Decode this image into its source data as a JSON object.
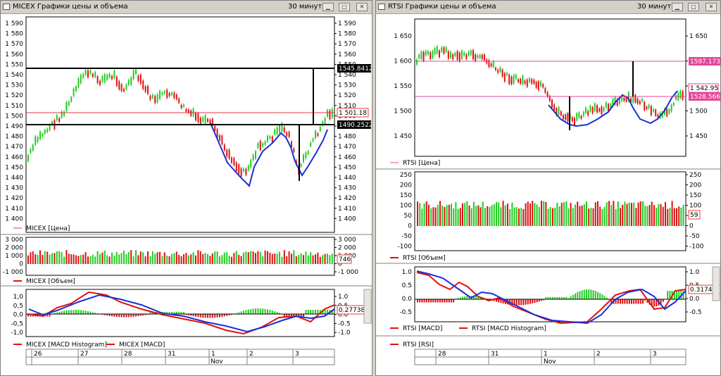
{
  "left": {
    "title": "MICEX Графики цены и объема",
    "interval": "30 минут",
    "price": {
      "ticks": [
        "1 590",
        "1 580",
        "1 570",
        "1 560",
        "1 550",
        "1 540",
        "1 530",
        "1 520",
        "1 510",
        "1 500",
        "1 490",
        "1 480",
        "1 470",
        "1 460",
        "1 450",
        "1 440",
        "1 430",
        "1 420",
        "1 410",
        "1 400"
      ],
      "marker_top": "1545.84126",
      "marker_mid": "1 501.18",
      "marker_bot": "1490.25228",
      "legend": "MICEX [Цена]"
    },
    "volume": {
      "ticks": [
        "3 000",
        "2 000",
        "1 000",
        "0",
        "-1 000"
      ],
      "marker": "746",
      "legend": "MICEX [Объем]"
    },
    "macd": {
      "ticks": [
        "1,0",
        "0,5",
        "0,0",
        "-0,5",
        "-1,0"
      ],
      "ticks_right": [
        "1.0",
        "0.5",
        "0.0",
        "-0.5",
        "-1.0"
      ],
      "marker": "0.27738",
      "legend1": "MICEX [MACD Histogram]",
      "legend2": "MICEX [MACD]"
    },
    "dates": [
      "26",
      "27",
      "28",
      "31",
      "1",
      "2",
      "3"
    ],
    "month": "Nov"
  },
  "right": {
    "title": "RTSI Графики цены и объема",
    "interval": "30 минут",
    "price": {
      "ticks": [
        "1 650",
        "1 600",
        "1 550",
        "1 500",
        "1 450"
      ],
      "marker_top": "1597.17375",
      "marker_mid": "1 542.95",
      "marker_bot": "1528.56670",
      "legend": "RTSI [Цена]"
    },
    "volume": {
      "ticks": [
        "250",
        "200",
        "150",
        "100",
        "50",
        "0",
        "-50",
        "-100"
      ],
      "marker": "59",
      "legend": "RTSI [Объем]"
    },
    "macd": {
      "ticks": [
        "1.0",
        "0.5",
        "0.0",
        "-0.5"
      ],
      "marker": "0.317479",
      "legend1": "RTSI [MACD]",
      "legend2": "RTSI [MACD Histogram]"
    },
    "rsi": {
      "legend": "RTSI [RSI]"
    },
    "dates": [
      "28",
      "31",
      "1",
      "2",
      "3"
    ],
    "month": "Nov"
  },
  "colors": {
    "up": "#22cc22",
    "down": "#dd1111",
    "wave": "#1a2fd6",
    "macd_line": "#e01010",
    "signal_line": "#1a2fd6",
    "level_red": "#e83a3a",
    "level_pink": "#e8439b"
  },
  "icons": {
    "window": "window-icon",
    "minimize": "minimize-icon",
    "maximize": "maximize-icon",
    "close": "close-icon"
  }
}
